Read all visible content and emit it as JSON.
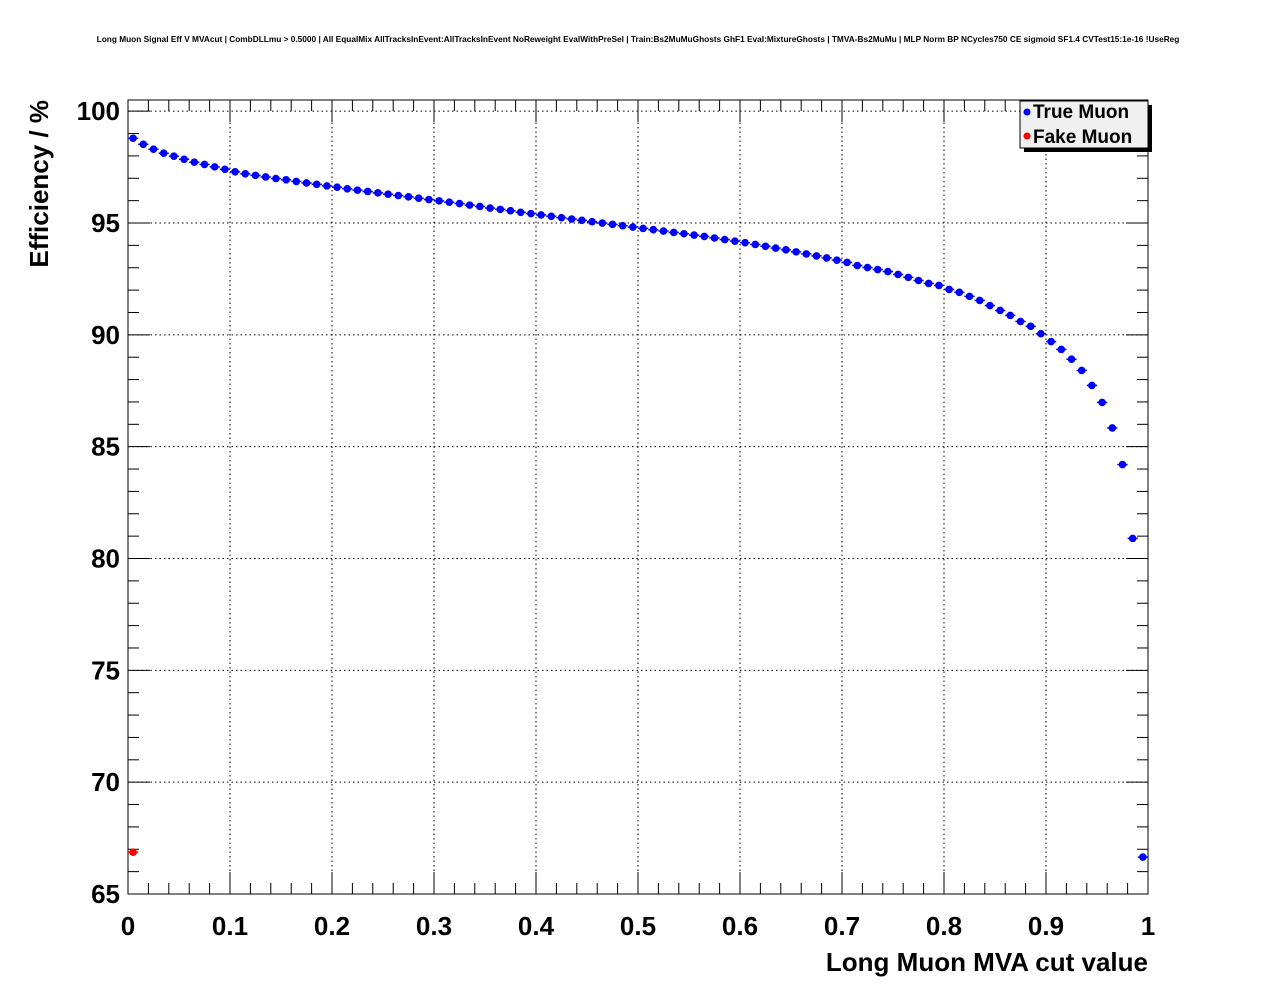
{
  "chart_data": {
    "type": "scatter",
    "title": "Long Muon Signal Eff V MVAcut | CombDLLmu > 0.5000 | All EqualMix AllTracksInEvent:AllTracksInEvent NoReweight EvalWithPreSel | Train:Bs2MuMuGhosts GhF1 Eval:MixtureGhosts | TMVA-Bs2MuMu | MLP Norm BP NCycles750 CE sigmoid SF1.4 CVTest15:1e-16 !UseReg",
    "xlabel": "Long Muon MVA cut value",
    "ylabel": "Efficiency / %",
    "xlim": [
      0,
      1
    ],
    "ylim": [
      65,
      100.5
    ],
    "xticks": [
      "0",
      "0.1",
      "0.2",
      "0.3",
      "0.4",
      "0.5",
      "0.6",
      "0.7",
      "0.8",
      "0.9",
      "1"
    ],
    "yticks": [
      "65",
      "70",
      "75",
      "80",
      "85",
      "90",
      "95",
      "100"
    ],
    "grid": true,
    "legend_position": "top-right",
    "series": [
      {
        "name": "True Muon",
        "color": "#0000ff",
        "x_start": 0.005,
        "x_step": 0.01,
        "values": [
          98.79,
          98.52,
          98.3,
          98.12,
          97.99,
          97.85,
          97.72,
          97.62,
          97.51,
          97.4,
          97.29,
          97.2,
          97.13,
          97.06,
          96.99,
          96.93,
          96.86,
          96.79,
          96.73,
          96.66,
          96.6,
          96.53,
          96.47,
          96.41,
          96.35,
          96.29,
          96.23,
          96.17,
          96.11,
          96.05,
          95.99,
          95.93,
          95.87,
          95.8,
          95.74,
          95.67,
          95.61,
          95.55,
          95.48,
          95.42,
          95.36,
          95.3,
          95.24,
          95.18,
          95.12,
          95.06,
          95.0,
          94.94,
          94.88,
          94.82,
          94.76,
          94.7,
          94.64,
          94.58,
          94.52,
          94.46,
          94.4,
          94.33,
          94.26,
          94.19,
          94.12,
          94.04,
          93.96,
          93.88,
          93.8,
          93.71,
          93.62,
          93.53,
          93.44,
          93.34,
          93.24,
          93.1,
          93.01,
          92.92,
          92.83,
          92.7,
          92.57,
          92.43,
          92.3,
          92.21,
          92.03,
          91.9,
          91.72,
          91.54,
          91.31,
          91.09,
          90.87,
          90.6,
          90.38,
          90.05,
          89.7,
          89.35,
          88.91,
          88.41,
          87.74,
          86.98,
          85.84,
          84.2,
          80.9,
          66.65
        ]
      },
      {
        "name": "Fake Muon",
        "color": "#ff0000",
        "x_start": 0.005,
        "x_step": 0.01,
        "values": [
          66.87
        ]
      }
    ]
  }
}
